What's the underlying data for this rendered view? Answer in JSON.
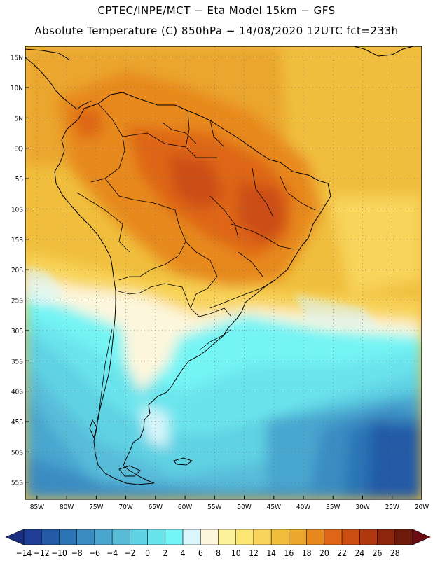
{
  "header": {
    "line1": "CPTEC/INPE/MCT −  Eta Model 15km − GFS",
    "line2": "Absolute Temperature (C) 850hPa − 14/08/2020 12UTC fct=233h"
  },
  "map": {
    "lat_labels": [
      "15N",
      "10N",
      "5N",
      "EQ",
      "5S",
      "10S",
      "15S",
      "20S",
      "25S",
      "30S",
      "35S",
      "40S",
      "45S",
      "50S",
      "55S"
    ],
    "lon_labels": [
      "85W",
      "80W",
      "75W",
      "70W",
      "65W",
      "60W",
      "55W",
      "50W",
      "45W",
      "40W",
      "35W",
      "30W",
      "25W",
      "20W"
    ],
    "lat_values": [
      15,
      10,
      5,
      0,
      -5,
      -10,
      -15,
      -20,
      -25,
      -30,
      -35,
      -40,
      -45,
      -50,
      -55
    ],
    "lon_values": [
      -85,
      -80,
      -75,
      -70,
      -65,
      -60,
      -55,
      -50,
      -45,
      -40,
      -35,
      -30,
      -25,
      -20
    ]
  },
  "colorbar": {
    "labels": [
      "-14",
      "-12",
      "-10",
      "-8",
      "-6",
      "-4",
      "-2",
      "0",
      "2",
      "4",
      "6",
      "8",
      "10",
      "12",
      "14",
      "16",
      "18",
      "20",
      "22",
      "24",
      "26",
      "28"
    ],
    "colors": [
      "#1f3e96",
      "#235aa6",
      "#2c74b5",
      "#3a8cc3",
      "#4aa6cf",
      "#58bcd9",
      "#5fd2e3",
      "#6ae4ec",
      "#74f4f4",
      "#d8f6fb",
      "#fdf6dc",
      "#fef39b",
      "#fde774",
      "#f8d45a",
      "#f0be3c",
      "#eaa62d",
      "#e7891e",
      "#de6616",
      "#cc4d12",
      "#b03810",
      "#8e260d",
      "#6e1a0c"
    ],
    "lower_color": "#1b2f80",
    "upper_color": "#6a0c12"
  }
}
